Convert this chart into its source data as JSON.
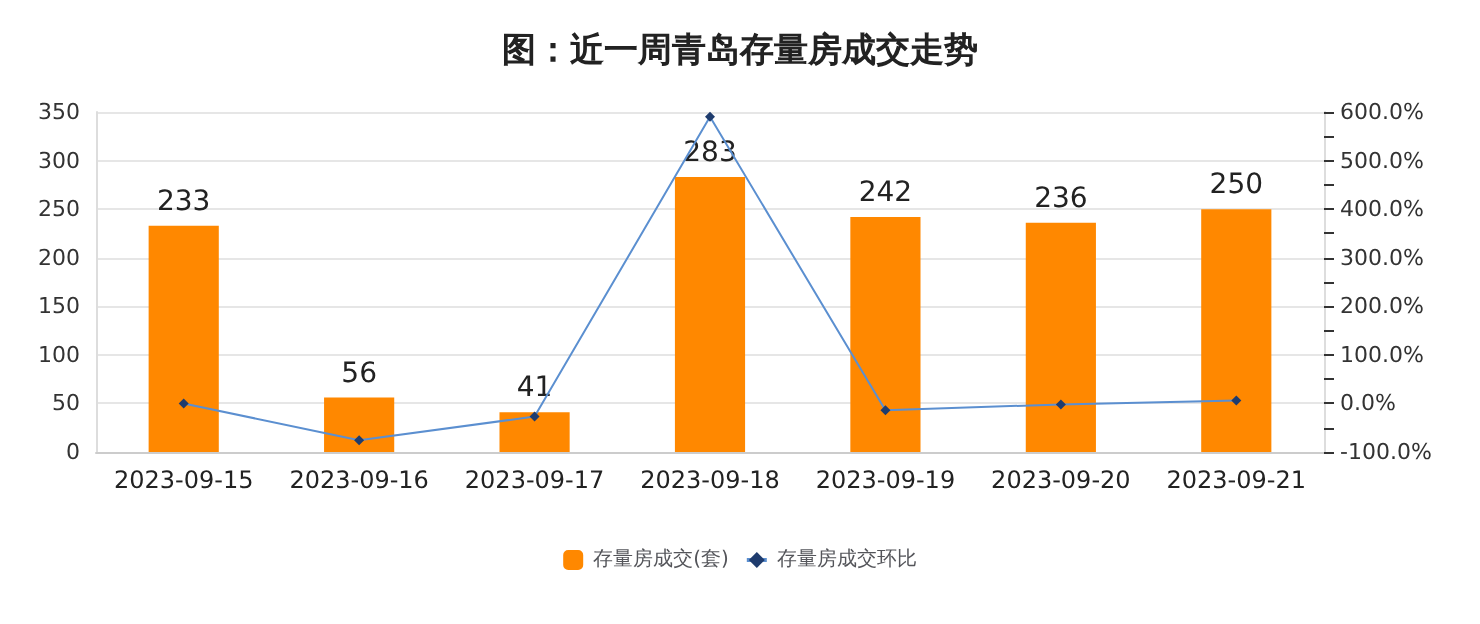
{
  "chart_data": {
    "type": "bar",
    "title": "图：近一周青岛存量房成交走势",
    "categories": [
      "2023-09-15",
      "2023-09-16",
      "2023-09-17",
      "2023-09-18",
      "2023-09-19",
      "2023-09-20",
      "2023-09-21"
    ],
    "series": [
      {
        "name": "存量房成交(套)",
        "color": "#ff8800",
        "values": [
          233,
          56,
          41,
          283,
          242,
          236,
          250
        ],
        "data_labels": true
      },
      {
        "name": "存量房成交环比",
        "type": "line",
        "axis": "y2",
        "color": "#5b8fd0",
        "marker": "diamond",
        "values": [
          0,
          -76,
          -27,
          590,
          -14,
          -2,
          6
        ]
      }
    ],
    "ylim": [
      0,
      350
    ],
    "yticks": [
      0,
      50,
      100,
      150,
      200,
      250,
      300,
      350
    ],
    "y2lim": [
      -100,
      600
    ],
    "y2ticks": [
      {
        "value": -100,
        "label": "-100.0%"
      },
      {
        "value": -50,
        "label": null
      },
      {
        "value": 0,
        "label": "0.0%"
      },
      {
        "value": 50,
        "label": null
      },
      {
        "value": 100,
        "label": "100.0%"
      },
      {
        "value": 150,
        "label": null
      },
      {
        "value": 200,
        "label": "200.0%"
      },
      {
        "value": 250,
        "label": null
      },
      {
        "value": 300,
        "label": "300.0%"
      },
      {
        "value": 350,
        "label": null
      },
      {
        "value": 400,
        "label": "400.0%"
      },
      {
        "value": 450,
        "label": null
      },
      {
        "value": 500,
        "label": "500.0%"
      },
      {
        "value": 550,
        "label": null
      },
      {
        "value": 600,
        "label": "600.0%"
      }
    ],
    "grid": "y",
    "legend": "bottom"
  }
}
